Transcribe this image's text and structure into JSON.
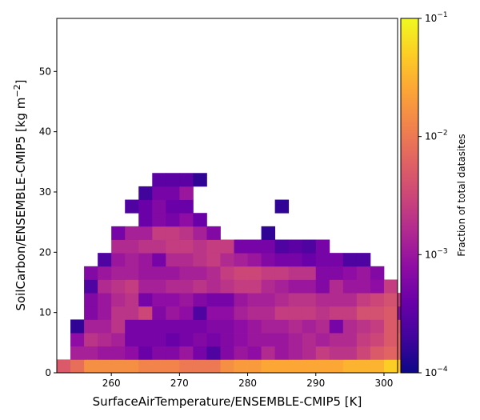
{
  "chart_data": {
    "type": "heatmap",
    "title": "",
    "xlabel": "SurfaceAirTemperature/ENSEMBLE-CMIP5 [K]",
    "ylabel": "SoilCarbon/ENSEMBLE-CMIP5 [kg m^{-2}]",
    "xlim": [
      252,
      302
    ],
    "ylim": [
      0,
      58.8
    ],
    "x_ticks": [
      260,
      270,
      280,
      290,
      300
    ],
    "y_ticks": [
      0,
      10,
      20,
      30,
      40,
      50
    ],
    "x_bin_start": 252,
    "x_bin_width": 2,
    "y_bin_width": 2.21,
    "colorbar": {
      "label": "Fraction of total datasites",
      "scale": "log",
      "range": [
        0.0001,
        0.1
      ],
      "colormap": "plasma",
      "tick_labels": [
        "10^{-4}",
        "10^{-3}",
        "10^{-2}",
        "10^{-1}"
      ],
      "tick_values": [
        0.0001,
        0.001,
        0.01,
        0.1
      ]
    },
    "grid": false,
    "cells_note": "rows of log10(fraction) values; row index = y bin from bottom, column index = x bin",
    "rows": [
      [
        -2.3,
        -2.1,
        -1.8,
        -1.8,
        -1.8,
        -1.8,
        -1.9,
        -1.9,
        -1.9,
        -2.0,
        -2.0,
        -2.0,
        -1.8,
        -1.7,
        -1.7,
        -1.6,
        -1.6,
        -1.6,
        -1.6,
        -1.6,
        -1.6,
        -1.5,
        -1.5,
        -1.5,
        -1.3,
        -1.4
      ],
      [
        null,
        -2.9,
        -2.9,
        -3.0,
        -3.0,
        -3.1,
        -3.4,
        -3.2,
        -3.2,
        -3.0,
        -3.3,
        -3.6,
        -3.2,
        -3.0,
        -3.1,
        -2.8,
        -3.0,
        -2.9,
        -2.8,
        -2.6,
        -2.7,
        -2.7,
        -2.5,
        -2.3,
        -2.2,
        -2.2
      ],
      [
        null,
        -3.1,
        -2.7,
        -2.8,
        -2.9,
        -3.3,
        -3.3,
        -3.3,
        -3.4,
        -3.3,
        -3.2,
        -3.3,
        -3.2,
        -3.1,
        -3.0,
        -3.0,
        -3.0,
        -2.9,
        -2.8,
        -2.9,
        -2.8,
        -2.8,
        -2.6,
        -2.5,
        -2.3,
        -2.2
      ],
      [
        null,
        -3.8,
        -2.9,
        -2.9,
        -2.7,
        -3.3,
        -3.3,
        -3.3,
        -3.3,
        -3.3,
        -3.3,
        -3.2,
        -3.2,
        -3.1,
        -3.0,
        -2.9,
        -2.9,
        -2.8,
        -2.9,
        -2.8,
        -3.3,
        -2.8,
        -2.7,
        -2.6,
        -2.3,
        -2.3
      ],
      [
        null,
        null,
        -3.2,
        -3.0,
        -2.7,
        -2.7,
        -2.5,
        -3.2,
        -3.0,
        -3.1,
        -3.6,
        -3.1,
        -3.1,
        -2.9,
        -2.8,
        -2.8,
        -2.6,
        -2.6,
        -2.6,
        -2.7,
        -2.6,
        -2.6,
        -2.4,
        -2.4,
        -2.3,
        -3.1
      ],
      [
        null,
        null,
        -3.2,
        -3.0,
        -2.8,
        -2.7,
        -3.3,
        -3.1,
        -3.1,
        -3.0,
        -3.2,
        -3.3,
        -3.3,
        -3.0,
        -2.9,
        -2.9,
        -2.8,
        -2.7,
        -2.7,
        -2.8,
        -2.8,
        -2.8,
        -2.6,
        -2.5,
        -2.4,
        -2.6
      ],
      [
        null,
        null,
        -3.6,
        -2.8,
        -2.7,
        -2.6,
        -2.9,
        -2.9,
        -2.8,
        -2.8,
        -2.7,
        -2.8,
        -2.7,
        -2.6,
        -2.6,
        -2.8,
        -2.9,
        -3.0,
        -3.0,
        -3.2,
        -2.8,
        -3.0,
        -3.0,
        -3.1,
        -2.6,
        null
      ],
      [
        null,
        null,
        -3.2,
        -3.0,
        -2.9,
        -2.9,
        -3.0,
        -3.0,
        -3.0,
        -2.9,
        -2.9,
        -2.8,
        -2.6,
        -2.5,
        -2.5,
        -2.6,
        -2.6,
        -2.7,
        -2.7,
        -3.2,
        -3.2,
        -3.1,
        -3.0,
        -3.2,
        null,
        null
      ],
      [
        null,
        null,
        null,
        -3.6,
        -3.0,
        -2.9,
        -3.0,
        -3.3,
        -2.8,
        -2.8,
        -2.7,
        -2.6,
        -2.8,
        -2.9,
        -3.0,
        -3.2,
        -3.3,
        -3.3,
        -3.4,
        -3.3,
        -3.3,
        -3.6,
        -3.6,
        null,
        null,
        null
      ],
      [
        null,
        null,
        null,
        null,
        -2.8,
        -2.8,
        -2.7,
        -2.7,
        -2.6,
        -2.6,
        -2.7,
        -2.6,
        -2.6,
        -3.3,
        -3.3,
        -3.3,
        -3.6,
        -3.5,
        -3.6,
        -3.3,
        null,
        null,
        null,
        null,
        null,
        null
      ],
      [
        null,
        null,
        null,
        null,
        -3.3,
        -2.9,
        -2.9,
        -2.6,
        -2.6,
        -2.7,
        -2.9,
        -3.2,
        null,
        null,
        null,
        -3.8,
        null,
        null,
        null,
        null,
        null,
        null,
        null,
        null,
        null,
        null
      ],
      [
        null,
        null,
        null,
        null,
        null,
        null,
        -3.4,
        -3.2,
        -3.3,
        -3.1,
        -3.4,
        null,
        null,
        null,
        null,
        null,
        null,
        null,
        null,
        null,
        null,
        null,
        null,
        null,
        null,
        null
      ],
      [
        null,
        null,
        null,
        null,
        null,
        -3.6,
        -3.4,
        -3.2,
        -3.4,
        -3.4,
        null,
        null,
        null,
        null,
        null,
        null,
        -3.8,
        null,
        null,
        null,
        null,
        null,
        null,
        null,
        null,
        null
      ],
      [
        null,
        null,
        null,
        null,
        null,
        null,
        -3.7,
        -3.3,
        -3.3,
        -3.0,
        null,
        null,
        null,
        null,
        null,
        null,
        null,
        null,
        null,
        null,
        null,
        null,
        null,
        null,
        null,
        null
      ],
      [
        null,
        null,
        null,
        null,
        null,
        null,
        null,
        -3.5,
        -3.5,
        -3.5,
        -3.8,
        null,
        null,
        null,
        null,
        null,
        null,
        null,
        null,
        null,
        null,
        null,
        null,
        null,
        null,
        null
      ]
    ]
  }
}
